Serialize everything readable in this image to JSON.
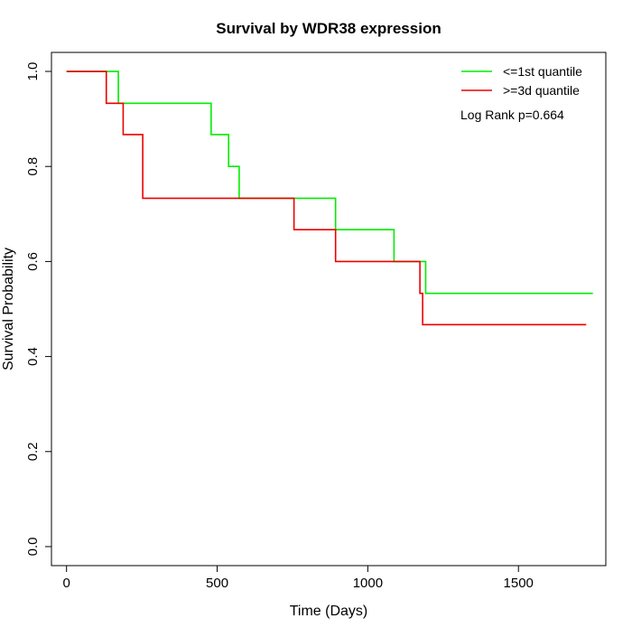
{
  "chart_data": {
    "type": "line",
    "step": true,
    "title": "Survival by WDR38 expression",
    "xlabel": "Time (Days)",
    "ylabel": "Survival Probability",
    "xlim": [
      -50,
      1790
    ],
    "ylim": [
      -0.04,
      1.04
    ],
    "xticks": [
      0,
      500,
      1000,
      1500
    ],
    "yticks": [
      0.0,
      0.2,
      0.4,
      0.6,
      0.8,
      1.0
    ],
    "ytick_labels": [
      "0.0",
      "0.2",
      "0.4",
      "0.6",
      "0.8",
      "1.0"
    ],
    "grid": false,
    "legend_position": "top-right",
    "annotation": "Log Rank p=0.664",
    "series": [
      {
        "name": "<=1st quantile",
        "color": "#00ee00",
        "x": [
          0,
          172,
          480,
          538,
          573,
          893,
          1087,
          1192,
          1747
        ],
        "y": [
          1.0,
          0.933,
          0.867,
          0.8,
          0.733,
          0.667,
          0.6,
          0.533,
          0.533
        ]
      },
      {
        "name": ">=3d quantile",
        "color": "#ee0000",
        "x": [
          0,
          132,
          188,
          253,
          755,
          893,
          1173,
          1182,
          1725
        ],
        "y": [
          1.0,
          0.933,
          0.867,
          0.733,
          0.667,
          0.6,
          0.533,
          0.467,
          0.467
        ]
      }
    ]
  }
}
